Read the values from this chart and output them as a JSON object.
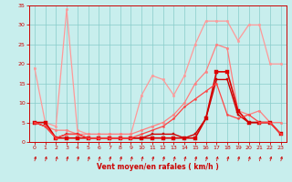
{
  "xlabel": "Vent moyen/en rafales ( km/h )",
  "xlim": [
    -0.5,
    23.5
  ],
  "ylim": [
    0,
    35
  ],
  "yticks": [
    0,
    5,
    10,
    15,
    20,
    25,
    30,
    35
  ],
  "xticks": [
    0,
    1,
    2,
    3,
    4,
    5,
    6,
    7,
    8,
    9,
    10,
    11,
    12,
    13,
    14,
    15,
    16,
    17,
    18,
    19,
    20,
    21,
    22,
    23
  ],
  "bg_color": "#c8eeed",
  "grid_color": "#aadddb",
  "series": [
    {
      "x": [
        0,
        1,
        2,
        3,
        4,
        5,
        6,
        7,
        8,
        9,
        10,
        11,
        12,
        13,
        14,
        15,
        16,
        17,
        18,
        19,
        20,
        21,
        22,
        23
      ],
      "y": [
        19,
        5,
        4,
        34,
        3,
        2,
        2,
        2,
        2,
        2,
        12,
        17,
        16,
        12,
        17,
        25,
        31,
        31,
        31,
        26,
        30,
        30,
        20,
        20
      ],
      "color": "#ff9999",
      "lw": 0.9,
      "marker": "o",
      "ms": 1.8
    },
    {
      "x": [
        0,
        1,
        2,
        3,
        4,
        5,
        6,
        7,
        8,
        9,
        10,
        11,
        12,
        13,
        14,
        15,
        16,
        17,
        18,
        19,
        20,
        21,
        22,
        23
      ],
      "y": [
        5,
        4,
        3,
        3,
        2,
        2,
        2,
        2,
        2,
        2,
        3,
        4,
        5,
        7,
        10,
        15,
        18,
        25,
        24,
        8,
        7,
        8,
        5,
        5
      ],
      "color": "#ff8080",
      "lw": 0.9,
      "marker": "o",
      "ms": 1.8
    },
    {
      "x": [
        0,
        1,
        2,
        3,
        4,
        5,
        6,
        7,
        8,
        9,
        10,
        11,
        12,
        13,
        14,
        15,
        16,
        17,
        18,
        19,
        20,
        21,
        22,
        23
      ],
      "y": [
        5,
        5,
        1,
        1,
        1,
        1,
        1,
        1,
        1,
        1,
        1,
        1,
        1,
        1,
        1,
        1,
        6,
        18,
        18,
        8,
        5,
        5,
        5,
        2
      ],
      "color": "#dd0000",
      "lw": 1.2,
      "marker": "s",
      "ms": 2.2
    },
    {
      "x": [
        0,
        1,
        2,
        3,
        4,
        5,
        6,
        7,
        8,
        9,
        10,
        11,
        12,
        13,
        14,
        15,
        16,
        17,
        18,
        19,
        20,
        21,
        22,
        23
      ],
      "y": [
        5,
        4,
        1,
        2,
        2,
        1,
        1,
        1,
        1,
        1,
        1,
        2,
        2,
        2,
        1,
        2,
        6,
        16,
        16,
        7,
        5,
        5,
        5,
        2
      ],
      "color": "#cc0000",
      "lw": 1.0,
      "marker": "s",
      "ms": 1.8
    },
    {
      "x": [
        0,
        1,
        2,
        3,
        4,
        5,
        6,
        7,
        8,
        9,
        10,
        11,
        12,
        13,
        14,
        15,
        16,
        17,
        18,
        19,
        20,
        21,
        22,
        23
      ],
      "y": [
        5,
        4,
        1,
        2,
        2,
        1,
        1,
        1,
        1,
        1,
        2,
        3,
        4,
        6,
        9,
        11,
        13,
        15,
        7,
        6,
        7,
        5,
        5,
        2
      ],
      "color": "#ff4444",
      "lw": 0.9,
      "marker": "o",
      "ms": 1.5
    }
  ]
}
